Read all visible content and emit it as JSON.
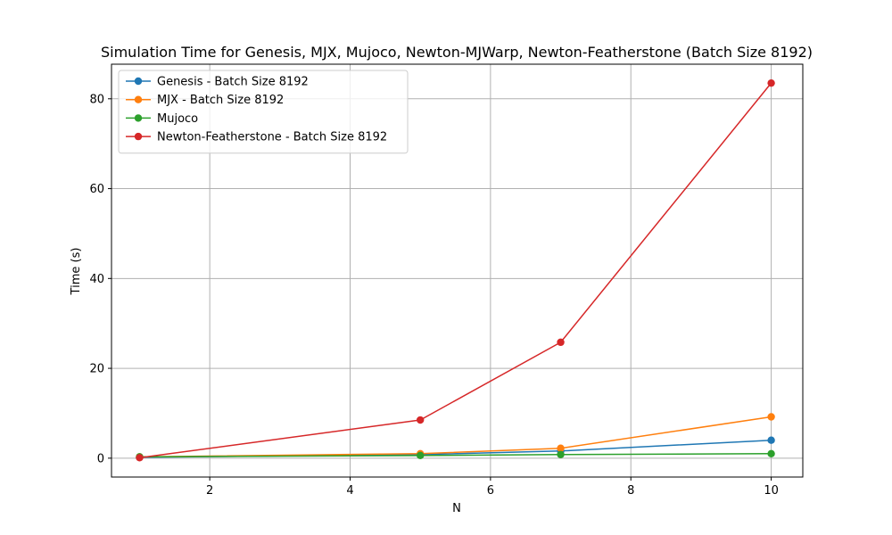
{
  "chart_data": {
    "type": "line",
    "title": "Simulation Time for Genesis, MJX, Mujoco, Newton-MJWarp, Newton-Featherstone (Batch Size 8192)",
    "xlabel": "N",
    "ylabel": "Time (s)",
    "xlim": [
      0.6,
      10.45
    ],
    "ylim": [
      -4.2,
      87.7
    ],
    "xticks": [
      2,
      4,
      6,
      8,
      10
    ],
    "yticks": [
      0,
      20,
      40,
      60,
      80
    ],
    "grid": true,
    "legend_position": "upper-left",
    "series": [
      {
        "name": "Genesis - Batch Size 8192",
        "color": "#1f77b4",
        "x": [
          1,
          5,
          7,
          10
        ],
        "y": [
          0.2,
          0.8,
          1.6,
          4.0
        ]
      },
      {
        "name": "MJX - Batch Size 8192",
        "color": "#ff7f0e",
        "x": [
          1,
          5,
          7,
          10
        ],
        "y": [
          0.3,
          1.0,
          2.2,
          9.2
        ]
      },
      {
        "name": "Mujoco",
        "color": "#2ca02c",
        "x": [
          1,
          5,
          7,
          10
        ],
        "y": [
          0.3,
          0.6,
          0.8,
          1.0
        ]
      },
      {
        "name": "Newton-Featherstone - Batch Size 8192",
        "color": "#d62728",
        "x": [
          1,
          5,
          7,
          10
        ],
        "y": [
          0.1,
          8.5,
          25.8,
          83.5
        ]
      }
    ]
  }
}
